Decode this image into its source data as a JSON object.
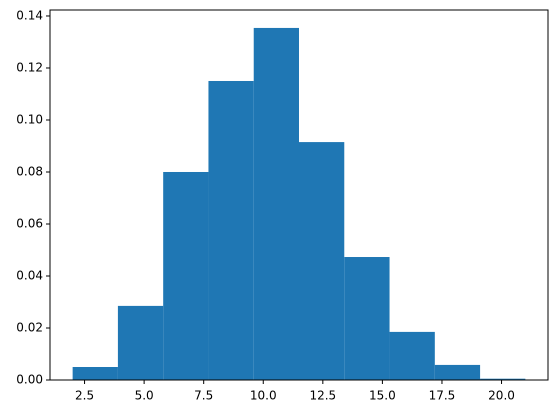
{
  "chart_data": {
    "type": "histogram",
    "bins": [
      2,
      3.9,
      5.8,
      7.7,
      9.6,
      11.5,
      13.4,
      15.3,
      17.2,
      19.1,
      21
    ],
    "values": [
      0.005,
      0.0285,
      0.08,
      0.115,
      0.1354,
      0.0915,
      0.0473,
      0.0185,
      0.0058,
      0.0005
    ],
    "color": "#1f77b4",
    "xlim": [
      1.05,
      21.95
    ],
    "ylim": [
      0,
      0.1423
    ],
    "xticks": [
      2.5,
      {
        "value": 5,
        "label": "5.0"
      },
      7.5,
      {
        "value": 10,
        "label": "10.0"
      },
      12.5,
      {
        "value": 15,
        "label": "15.0"
      },
      17.5,
      {
        "value": 20,
        "label": "20.0"
      }
    ],
    "yticks": [
      {
        "value": 0,
        "label": "0.00"
      },
      0.02,
      0.04,
      0.06,
      0.08,
      {
        "value": 0.1,
        "label": "0.10"
      },
      0.12,
      0.14
    ]
  }
}
